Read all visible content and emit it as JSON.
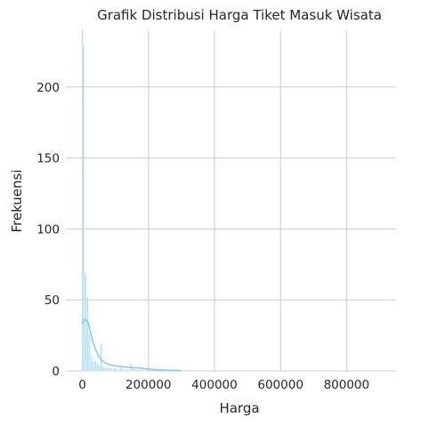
{
  "chart_data": {
    "type": "histogram",
    "title": "Grafik Distribusi Harga Tiket Masuk Wisata",
    "xlabel": "Harga",
    "ylabel": "Frekuensi",
    "xlim": [
      -50000,
      950000
    ],
    "ylim": [
      0,
      240
    ],
    "xticks": [
      0,
      200000,
      400000,
      600000,
      800000
    ],
    "xtick_labels": [
      "0",
      "200000",
      "400000",
      "600000",
      "800000"
    ],
    "yticks": [
      0,
      50,
      100,
      150,
      200
    ],
    "ytick_labels": [
      "0",
      "50",
      "100",
      "150",
      "200"
    ],
    "grid": true,
    "colors": {
      "bar": "#87ceeb",
      "kde": "#87ceeb",
      "grid": "#cccccc",
      "text": "#262626"
    },
    "bin_width": 6000,
    "bins_start": 0,
    "counts": [
      230,
      69,
      52,
      26,
      10,
      6,
      7,
      5,
      4,
      19,
      3,
      2,
      3,
      2,
      2,
      1,
      2,
      1,
      1,
      2,
      1,
      1,
      1,
      0,
      5,
      2,
      1,
      1,
      1,
      1,
      1,
      0,
      1,
      1,
      0,
      1,
      0,
      0,
      0,
      0,
      0,
      0,
      1,
      0,
      0,
      0,
      1,
      0,
      0,
      0,
      0,
      0,
      1
    ],
    "kde": {
      "x": [
        0,
        5000,
        10000,
        15000,
        20000,
        25000,
        30000,
        40000,
        50000,
        60000,
        70000,
        80000,
        90000,
        100000,
        120000,
        140000,
        160000,
        180000,
        200000,
        220000,
        250000,
        300000
      ],
      "y": [
        33,
        36,
        36,
        35,
        32,
        27,
        22,
        15,
        10,
        7,
        5.5,
        4.5,
        4,
        3.5,
        3,
        2.5,
        2.2,
        1.8,
        1.3,
        0.9,
        0.5,
        0.2
      ]
    }
  }
}
